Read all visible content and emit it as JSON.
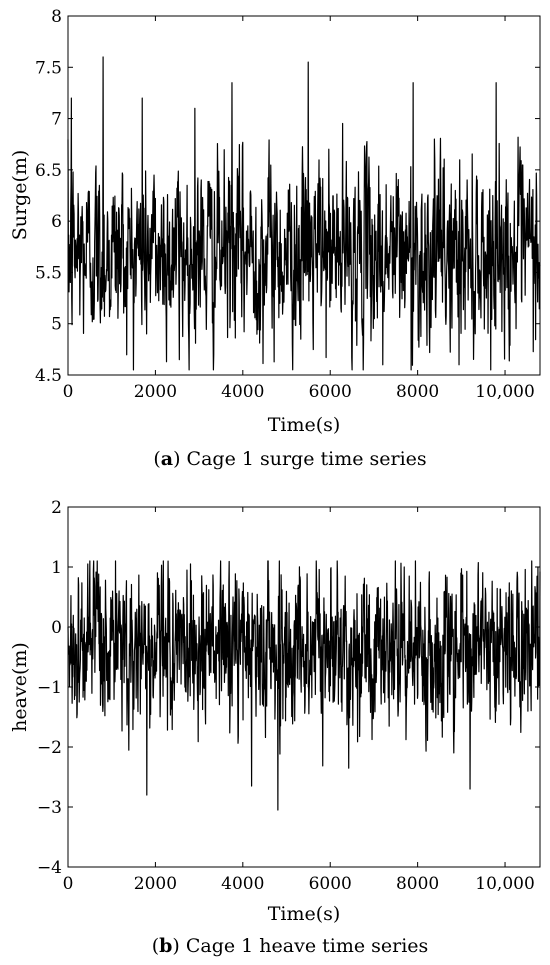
{
  "charts": [
    {
      "caption_label": "a",
      "caption_text": " Cage 1 surge time series",
      "chart_data": {
        "type": "line",
        "xlabel": "Time(s)",
        "ylabel": "Surge(m)",
        "xlim": [
          0,
          10800
        ],
        "ylim": [
          4.5,
          8
        ],
        "xticks": [
          0,
          2000,
          4000,
          6000,
          8000,
          10000
        ],
        "xtick_labels": [
          "0",
          "2000",
          "4000",
          "6000",
          "8000",
          "10,000"
        ],
        "yticks": [
          4.5,
          5,
          5.5,
          6,
          6.5,
          7,
          7.5,
          8
        ],
        "ytick_labels": [
          "4.5",
          "5",
          "5.5",
          "6",
          "6.5",
          "7",
          "7.5",
          "8"
        ],
        "grid": false,
        "series": [
          {
            "color": "#000000",
            "signal": {
              "samples": 1400,
              "mean": 5.7,
              "std": 0.42,
              "min": 4.55,
              "max": 7.6
            },
            "peaks": [
              [
                80,
                7.2
              ],
              [
                800,
                7.6
              ],
              [
                1700,
                7.2
              ],
              [
                2900,
                7.1
              ],
              [
                3750,
                7.35
              ],
              [
                5500,
                7.55
              ],
              [
                7900,
                7.35
              ],
              [
                9800,
                7.35
              ]
            ],
            "troughs": [
              [
                2550,
                4.65
              ],
              [
                7200,
                4.6
              ],
              [
                7850,
                4.55
              ],
              [
                8950,
                4.6
              ]
            ]
          }
        ]
      }
    },
    {
      "caption_label": "b",
      "caption_text": " Cage 1 heave time series",
      "chart_data": {
        "type": "line",
        "xlabel": "Time(s)",
        "ylabel": "heave(m)",
        "xlim": [
          0,
          10800
        ],
        "ylim": [
          -4,
          2
        ],
        "xticks": [
          0,
          2000,
          4000,
          6000,
          8000,
          10000
        ],
        "xtick_labels": [
          "0",
          "2000",
          "4000",
          "6000",
          "8000",
          "10,000"
        ],
        "yticks": [
          -4,
          -3,
          -2,
          -1,
          0,
          1,
          2
        ],
        "ytick_labels": [
          "−4",
          "−3",
          "−2",
          "−1",
          "0",
          "1",
          "2"
        ],
        "grid": false,
        "series": [
          {
            "color": "#000000",
            "signal": {
              "samples": 1600,
              "mean": -0.35,
              "std": 0.62,
              "min": -3.05,
              "max": 1.1
            },
            "peaks": [
              [
                450,
                1.05
              ],
              [
                2800,
                1.05
              ],
              [
                7950,
                1.1
              ],
              [
                10750,
                1.0
              ]
            ],
            "troughs": [
              [
                1800,
                -2.8
              ],
              [
                4200,
                -2.65
              ],
              [
                4800,
                -3.05
              ],
              [
                9200,
                -2.7
              ]
            ]
          }
        ]
      }
    }
  ]
}
